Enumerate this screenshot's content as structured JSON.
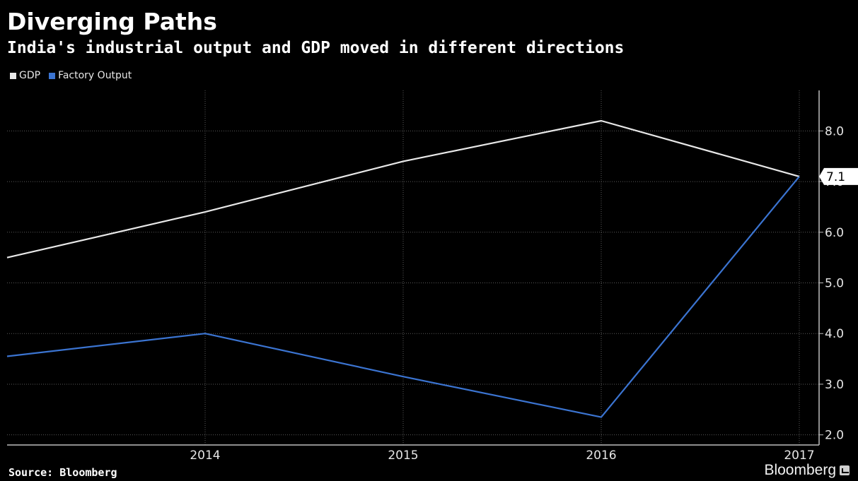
{
  "chart_data": {
    "type": "line",
    "title": "Diverging Paths",
    "subtitle": "India's industrial output and GDP moved in different directions",
    "x": [
      2013,
      2014,
      2015,
      2016,
      2017
    ],
    "xticks": [
      "2014",
      "2015",
      "2016",
      "2017"
    ],
    "xlim": [
      2013,
      2017.1
    ],
    "ylim": [
      1.8,
      8.8
    ],
    "yticks": [
      "2.0",
      "3.0",
      "4.0",
      "5.0",
      "6.0",
      "7.0",
      "8.0"
    ],
    "grid": true,
    "legend_position": "top-left",
    "series": [
      {
        "name": "GDP",
        "color": "#e8e8e8",
        "values": [
          5.5,
          6.4,
          7.4,
          8.2,
          7.1
        ]
      },
      {
        "name": "Factory Output",
        "color": "#3b74d1",
        "values": [
          3.55,
          4.0,
          3.15,
          2.35,
          7.1
        ]
      }
    ],
    "last_value_label": "7.1",
    "source": "Source: Bloomberg",
    "brand": "Bloomberg"
  }
}
